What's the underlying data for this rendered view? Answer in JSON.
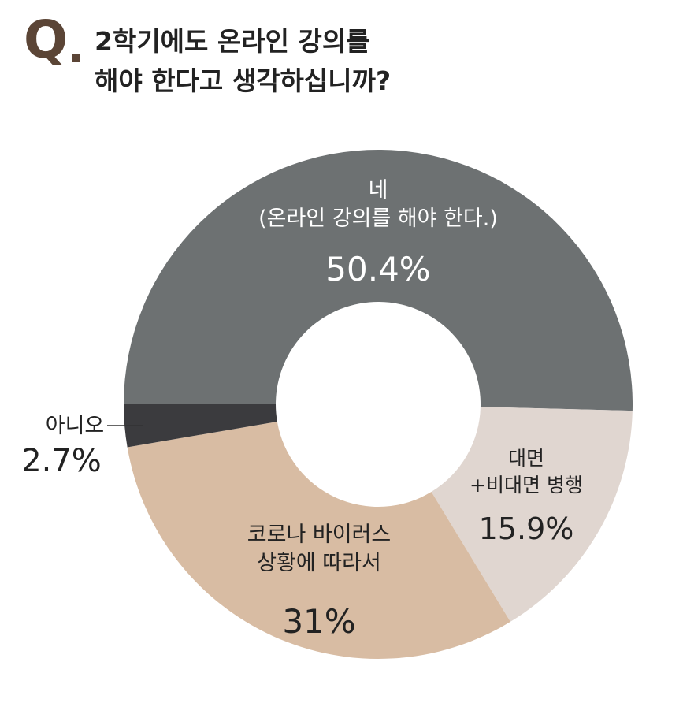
{
  "question": {
    "mark": "Q",
    "line1": "2학기에도 온라인 강의를",
    "line2": "해야 한다고 생각하십니까?"
  },
  "chart_data": {
    "type": "pie",
    "style": "donut",
    "title": "2학기에도 온라인 강의를 해야 한다고 생각하십니까?",
    "slices": [
      {
        "label_lines": [
          "네",
          "(온라인 강의를 해야 한다.)"
        ],
        "value": 50.4,
        "value_text": "50.4%",
        "color": "#6d7172"
      },
      {
        "label_lines": [
          "대면",
          "+비대면 병행"
        ],
        "value": 15.9,
        "value_text": "15.9%",
        "color": "#e0d6d0"
      },
      {
        "label_lines": [
          "코로나 바이러스",
          "상황에 따라서"
        ],
        "value": 31,
        "value_text": "31%",
        "color": "#d8bca3"
      },
      {
        "label_lines": [
          "아니오"
        ],
        "value": 2.7,
        "value_text": "2.7%",
        "color": "#3b3b3e"
      }
    ]
  }
}
